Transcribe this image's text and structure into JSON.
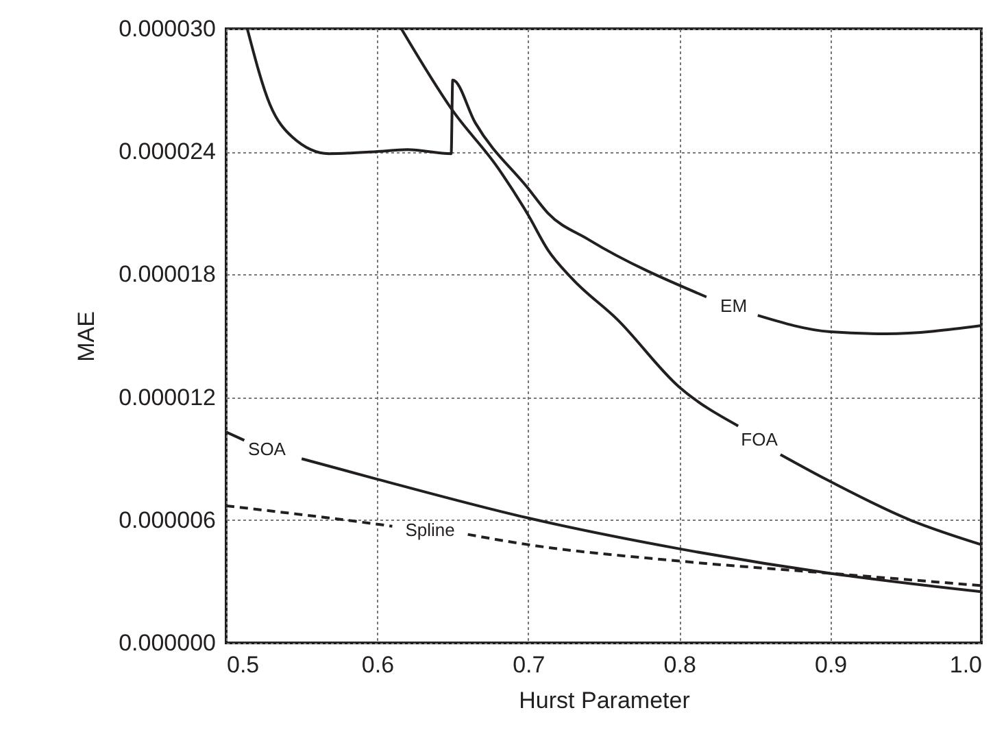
{
  "chart_data": {
    "type": "line",
    "xlabel": "Hurst Parameter",
    "ylabel": "MAE",
    "xlim": [
      0.5,
      1.0
    ],
    "ylim": [
      0,
      3e-05
    ],
    "xticks": [
      0.5,
      0.6,
      0.7,
      0.8,
      0.9,
      {
        "value": 1.0,
        "label": "1.0"
      }
    ],
    "yticks": [
      {
        "value": 0,
        "label": "0.000000"
      },
      {
        "value": 6e-06,
        "label": "0.000006"
      },
      {
        "value": 1.2e-05,
        "label": "0.000012"
      },
      {
        "value": 1.8e-05,
        "label": "0.000018"
      },
      {
        "value": 2.4e-05,
        "label": "0.000024"
      },
      {
        "value": 3e-05,
        "label": "0.000030"
      }
    ],
    "grid": true,
    "marker": "none",
    "series": [
      {
        "name": "EM",
        "color": "#231f20",
        "line_style": "solid",
        "x": [
          0.514,
          0.529,
          0.544,
          0.568,
          0.599,
          0.62,
          0.649,
          0.65,
          0.665,
          0.7,
          0.713,
          0.74,
          0.818,
          0.836,
          0.852,
          0.9,
          0.937,
          1.0
        ],
        "values": [
          3e-05,
          2.63e-05,
          2.47e-05,
          2.39e-05,
          2.4e-05,
          2.41e-05,
          2.39e-05,
          2.75e-05,
          2.54e-05,
          2.22e-05,
          2.1e-05,
          1.97e-05,
          1.69e-05,
          null,
          1.6e-05,
          1.52e-05,
          1.51e-05,
          1.55e-05
        ]
      },
      {
        "name": "FOA",
        "color": "#231f20",
        "line_style": "solid",
        "x": [
          0.616,
          0.65,
          0.68,
          0.7,
          0.713,
          0.729,
          0.759,
          0.8,
          0.839,
          0.853,
          0.867,
          0.897,
          0.953,
          1.0
        ],
        "values": [
          3e-05,
          2.6e-05,
          2.32e-05,
          2.09e-05,
          1.92e-05,
          1.78e-05,
          1.58e-05,
          1.25e-05,
          1.06e-05,
          null,
          9.2e-06,
          8e-06,
          6e-06,
          4.8e-06
        ]
      },
      {
        "name": "SOA",
        "color": "#231f20",
        "line_style": "solid",
        "x": [
          0.5,
          0.512,
          0.527,
          0.55,
          0.6,
          0.7,
          0.8,
          0.9,
          1.0
        ],
        "values": [
          1.03e-05,
          9.9e-06,
          null,
          9e-06,
          8e-06,
          6.1e-06,
          4.6e-06,
          3.4e-06,
          2.5e-06
        ]
      },
      {
        "name": "Spline",
        "color": "#231f20",
        "line_style": "dashed",
        "x": [
          0.5,
          0.6,
          0.61,
          0.635,
          0.66,
          0.7,
          0.8,
          0.9,
          1.0
        ],
        "values": [
          6.7e-06,
          5.8e-06,
          5.7e-06,
          null,
          5.3e-06,
          4.8e-06,
          4e-06,
          3.4e-06,
          2.8e-06
        ]
      }
    ]
  }
}
